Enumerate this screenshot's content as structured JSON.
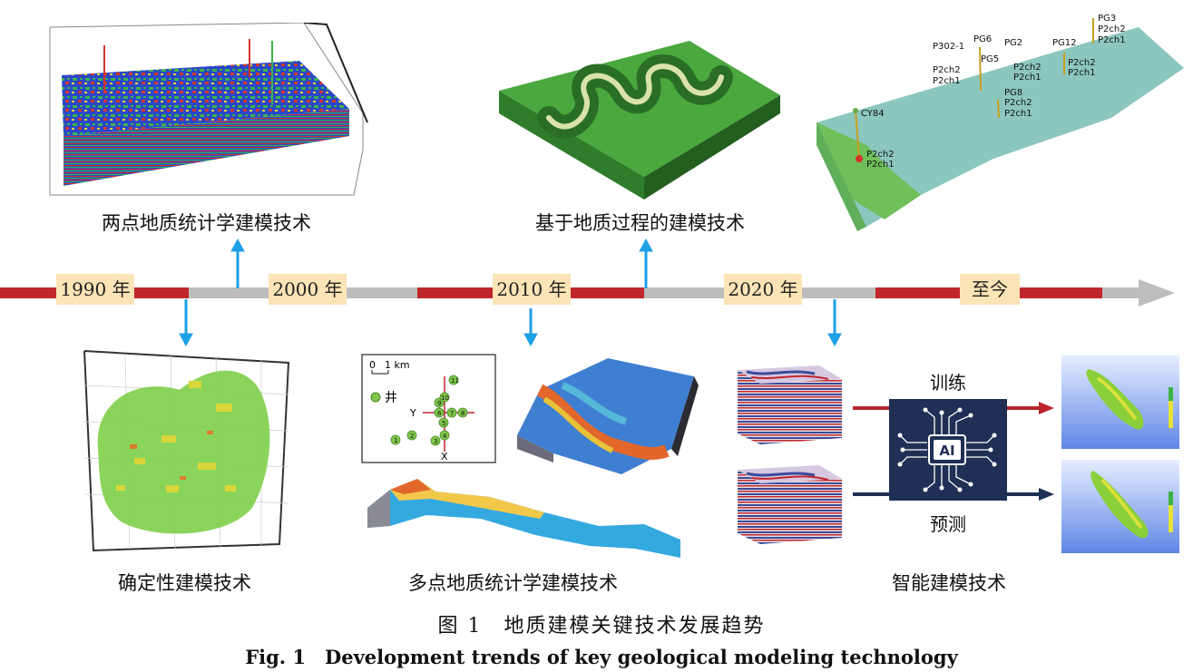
{
  "timeline": {
    "years": [
      "1990 年",
      "2000 年",
      "2010 年",
      "2020 年",
      "至今"
    ]
  },
  "methods": {
    "two_point": "两点地质统计学建模技术",
    "process_based": "基于地质过程的建模技术",
    "deterministic": "确定性建模技术",
    "multi_point": "多点地质统计学建模技术",
    "intelligent": "智能建模技术"
  },
  "ai_panel": {
    "train_label": "训练",
    "predict_label": "预测",
    "chip_text": "AI"
  },
  "well_map": {
    "scale_zero": "0",
    "scale_text": "1 km",
    "legend_text": "井",
    "axis_y": "Y",
    "axis_x": "X",
    "wells": [
      "1",
      "2",
      "3",
      "4",
      "5",
      "6",
      "7",
      "8",
      "9",
      "10",
      "11"
    ]
  },
  "well_model": {
    "wells": [
      "PG3",
      "P302-1",
      "PG6",
      "PG5",
      "PG2",
      "PG12",
      "PG8",
      "CY84"
    ],
    "layers": [
      "P2ch2",
      "P2ch1"
    ]
  },
  "caption": {
    "cn": "图 1　地质建模关键技术发展趋势",
    "en": "Fig. 1　Development trends of key geological modeling technology"
  },
  "colors": {
    "timeline_red": "#c0272d",
    "timeline_gray": "#bdbdbd",
    "year_box": "#fbe4b5",
    "arrow_blue": "#1ea0e6",
    "ai_panel": "#1f2f55"
  }
}
